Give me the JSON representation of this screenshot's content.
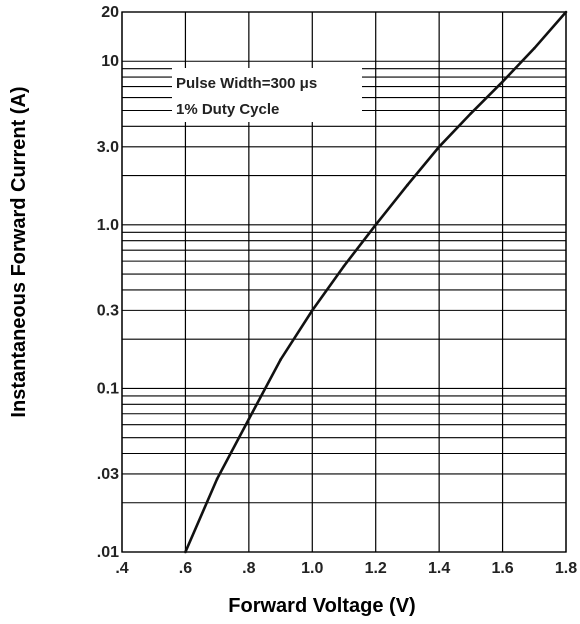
{
  "chart_data": {
    "type": "line",
    "title": "",
    "xlabel": "Forward Voltage (V)",
    "ylabel": "Instantaneous Forward Current (A)",
    "x_scale": "linear",
    "y_scale": "log",
    "xlim": [
      0.4,
      1.8
    ],
    "ylim": [
      0.01,
      20
    ],
    "grid": true,
    "x_ticks": [
      0.4,
      0.6,
      0.8,
      1.0,
      1.2,
      1.4,
      1.6,
      1.8
    ],
    "x_tick_labels": [
      ".4",
      ".6",
      ".8",
      "1.0",
      "1.2",
      "1.4",
      "1.6",
      "1.8"
    ],
    "y_ticks": [
      0.01,
      0.03,
      0.1,
      0.3,
      1.0,
      3.0,
      10,
      20
    ],
    "y_tick_labels": [
      ".01",
      ".03",
      "0.1",
      "0.3",
      "1.0",
      "3.0",
      "10",
      "20"
    ],
    "annotations": [
      "Pulse Width=300 μs",
      "1% Duty  Cycle"
    ],
    "series": [
      {
        "x": [
          0.6,
          0.7,
          0.8,
          0.9,
          1.0,
          1.1,
          1.2,
          1.3,
          1.4,
          1.5,
          1.6,
          1.7,
          1.8
        ],
        "y": [
          0.01,
          0.028,
          0.065,
          0.15,
          0.3,
          0.56,
          1.0,
          1.75,
          3.0,
          4.8,
          7.5,
          12.0,
          20.0
        ]
      }
    ],
    "line_color": "#111111",
    "grid_color": "#000000"
  }
}
